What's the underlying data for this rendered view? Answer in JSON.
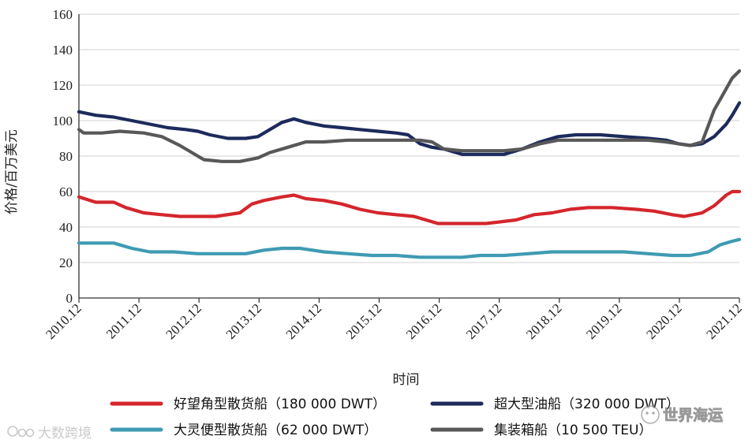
{
  "chart_data": {
    "type": "line",
    "xlabel": "时间",
    "ylabel": "价格/百万美元",
    "ylim": [
      0,
      160
    ],
    "yticks": [
      "0",
      "20",
      "40",
      "60",
      "80",
      "100",
      "120",
      "140",
      "160"
    ],
    "categories": [
      "2010.12",
      "2011.12",
      "2012.12",
      "2013.12",
      "2014.12",
      "2015.12",
      "2016.12",
      "2017.12",
      "2018.12",
      "2019.12",
      "2020.12",
      "2021.12"
    ],
    "x_start": 2010.92,
    "x_end": 2021.92,
    "grid": "horizontal",
    "legend_position": "bottom",
    "series": [
      {
        "name": "好望角型散货船（180 000 DWT）",
        "color": "#d4262c",
        "points": [
          [
            2010.92,
            57
          ],
          [
            2011.2,
            54
          ],
          [
            2011.5,
            54
          ],
          [
            2011.7,
            51
          ],
          [
            2012.0,
            48
          ],
          [
            2012.3,
            47
          ],
          [
            2012.6,
            46
          ],
          [
            2012.9,
            46
          ],
          [
            2013.2,
            46
          ],
          [
            2013.6,
            48
          ],
          [
            2013.8,
            53
          ],
          [
            2014.0,
            55
          ],
          [
            2014.3,
            57
          ],
          [
            2014.5,
            58
          ],
          [
            2014.7,
            56
          ],
          [
            2015.0,
            55
          ],
          [
            2015.3,
            53
          ],
          [
            2015.6,
            50
          ],
          [
            2015.9,
            48
          ],
          [
            2016.2,
            47
          ],
          [
            2016.5,
            46
          ],
          [
            2016.8,
            43
          ],
          [
            2016.9,
            42
          ],
          [
            2017.3,
            42
          ],
          [
            2017.7,
            42
          ],
          [
            2017.95,
            43
          ],
          [
            2018.2,
            44
          ],
          [
            2018.5,
            47
          ],
          [
            2018.8,
            48
          ],
          [
            2019.1,
            50
          ],
          [
            2019.4,
            51
          ],
          [
            2019.8,
            51
          ],
          [
            2020.2,
            50
          ],
          [
            2020.5,
            49
          ],
          [
            2020.8,
            47
          ],
          [
            2021.0,
            46
          ],
          [
            2021.3,
            48
          ],
          [
            2021.5,
            52
          ],
          [
            2021.7,
            58
          ],
          [
            2021.8,
            60
          ],
          [
            2021.92,
            60
          ]
        ]
      },
      {
        "name": "超大型油船（320 000 DWT）",
        "color": "#1c2a5c",
        "points": [
          [
            2010.92,
            105
          ],
          [
            2011.2,
            103
          ],
          [
            2011.5,
            102
          ],
          [
            2011.8,
            100
          ],
          [
            2012.1,
            98
          ],
          [
            2012.4,
            96
          ],
          [
            2012.7,
            95
          ],
          [
            2012.9,
            94
          ],
          [
            2013.1,
            92
          ],
          [
            2013.4,
            90
          ],
          [
            2013.7,
            90
          ],
          [
            2013.9,
            91
          ],
          [
            2014.1,
            95
          ],
          [
            2014.3,
            99
          ],
          [
            2014.5,
            101
          ],
          [
            2014.7,
            99
          ],
          [
            2015.0,
            97
          ],
          [
            2015.3,
            96
          ],
          [
            2015.6,
            95
          ],
          [
            2015.9,
            94
          ],
          [
            2016.2,
            93
          ],
          [
            2016.4,
            92
          ],
          [
            2016.6,
            87
          ],
          [
            2016.8,
            85
          ],
          [
            2017.0,
            84
          ],
          [
            2017.2,
            82
          ],
          [
            2017.3,
            81
          ],
          [
            2017.6,
            81
          ],
          [
            2018.0,
            81
          ],
          [
            2018.3,
            84
          ],
          [
            2018.6,
            88
          ],
          [
            2018.9,
            91
          ],
          [
            2019.2,
            92
          ],
          [
            2019.6,
            92
          ],
          [
            2020.0,
            91
          ],
          [
            2020.4,
            90
          ],
          [
            2020.7,
            89
          ],
          [
            2020.9,
            87
          ],
          [
            2021.1,
            86
          ],
          [
            2021.3,
            87
          ],
          [
            2021.5,
            91
          ],
          [
            2021.7,
            98
          ],
          [
            2021.8,
            103
          ],
          [
            2021.92,
            110
          ]
        ]
      },
      {
        "name": "大灵便型散货船（62 000 DWT）",
        "color": "#3f9bb3",
        "points": [
          [
            2010.92,
            31
          ],
          [
            2011.5,
            31
          ],
          [
            2011.8,
            28
          ],
          [
            2012.1,
            26
          ],
          [
            2012.5,
            26
          ],
          [
            2012.9,
            25
          ],
          [
            2013.3,
            25
          ],
          [
            2013.7,
            25
          ],
          [
            2014.0,
            27
          ],
          [
            2014.3,
            28
          ],
          [
            2014.6,
            28
          ],
          [
            2015.0,
            26
          ],
          [
            2015.4,
            25
          ],
          [
            2015.8,
            24
          ],
          [
            2016.2,
            24
          ],
          [
            2016.6,
            23
          ],
          [
            2016.9,
            23
          ],
          [
            2017.3,
            23
          ],
          [
            2017.6,
            24
          ],
          [
            2018.0,
            24
          ],
          [
            2018.4,
            25
          ],
          [
            2018.8,
            26
          ],
          [
            2019.2,
            26
          ],
          [
            2019.6,
            26
          ],
          [
            2020.0,
            26
          ],
          [
            2020.4,
            25
          ],
          [
            2020.8,
            24
          ],
          [
            2021.1,
            24
          ],
          [
            2021.4,
            26
          ],
          [
            2021.6,
            30
          ],
          [
            2021.8,
            32
          ],
          [
            2021.92,
            33
          ]
        ]
      },
      {
        "name": "集装箱船（10 500 TEU）",
        "color": "#585858",
        "points": [
          [
            2010.92,
            95
          ],
          [
            2011.0,
            93
          ],
          [
            2011.3,
            93
          ],
          [
            2011.6,
            94
          ],
          [
            2012.0,
            93
          ],
          [
            2012.3,
            91
          ],
          [
            2012.6,
            86
          ],
          [
            2012.8,
            82
          ],
          [
            2013.0,
            78
          ],
          [
            2013.3,
            77
          ],
          [
            2013.6,
            77
          ],
          [
            2013.9,
            79
          ],
          [
            2014.1,
            82
          ],
          [
            2014.4,
            85
          ],
          [
            2014.7,
            88
          ],
          [
            2015.0,
            88
          ],
          [
            2015.4,
            89
          ],
          [
            2015.8,
            89
          ],
          [
            2016.2,
            89
          ],
          [
            2016.6,
            89
          ],
          [
            2016.8,
            88
          ],
          [
            2017.0,
            84
          ],
          [
            2017.3,
            83
          ],
          [
            2017.7,
            83
          ],
          [
            2018.0,
            83
          ],
          [
            2018.3,
            84
          ],
          [
            2018.6,
            87
          ],
          [
            2018.9,
            89
          ],
          [
            2019.2,
            89
          ],
          [
            2019.6,
            89
          ],
          [
            2020.0,
            89
          ],
          [
            2020.4,
            89
          ],
          [
            2020.7,
            88
          ],
          [
            2020.9,
            87
          ],
          [
            2021.1,
            86
          ],
          [
            2021.3,
            88
          ],
          [
            2021.4,
            97
          ],
          [
            2021.5,
            106
          ],
          [
            2021.6,
            112
          ],
          [
            2021.7,
            118
          ],
          [
            2021.8,
            124
          ],
          [
            2021.92,
            128
          ]
        ]
      }
    ]
  },
  "watermarks": {
    "left": "大数跨境",
    "right": "世界海运"
  }
}
